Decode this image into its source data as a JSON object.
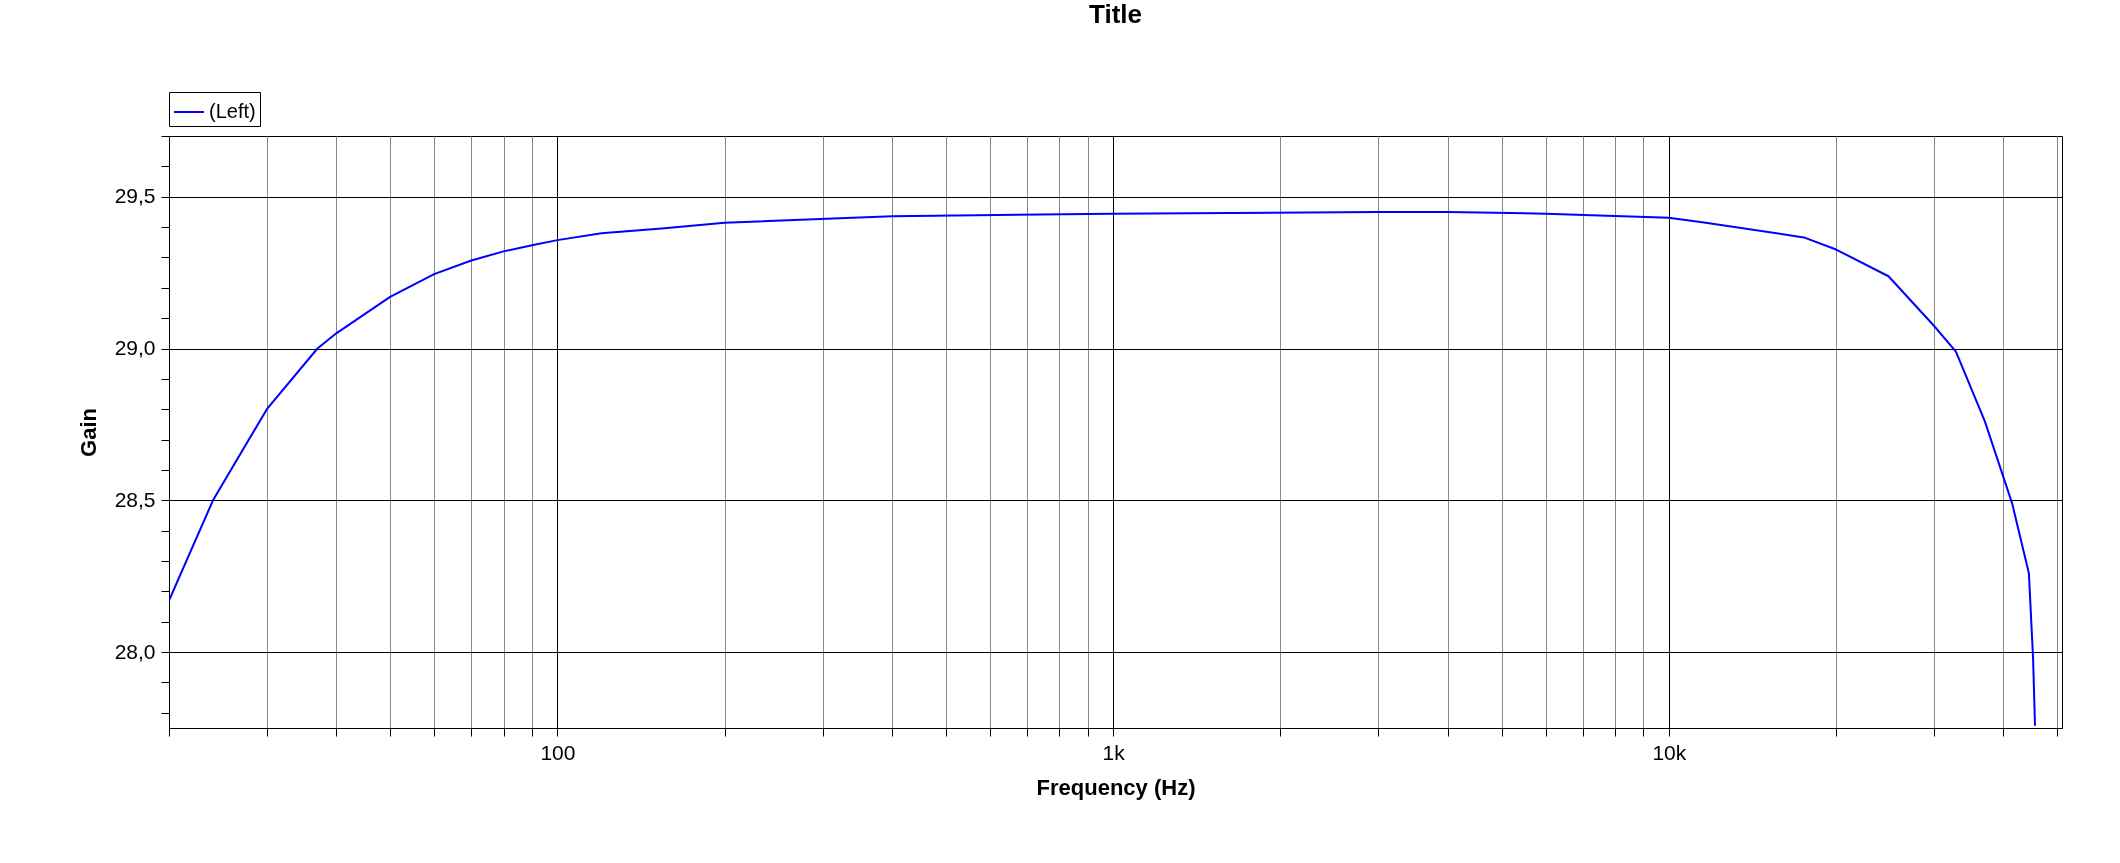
{
  "chart_data": {
    "type": "line",
    "title": "Title",
    "xlabel": "Frequency (Hz)",
    "ylabel": "Gain",
    "log": "x",
    "grid": true,
    "legend": "top left",
    "marker": "none",
    "line_style": "solid",
    "xlim": [
      20,
      51000
    ],
    "ylim": [
      27.75,
      29.7
    ],
    "xticks": [
      {
        "value": 20,
        "label": null
      },
      {
        "value": 30,
        "label": null
      },
      {
        "value": 40,
        "label": null
      },
      {
        "value": 50,
        "label": null
      },
      {
        "value": 60,
        "label": null
      },
      {
        "value": 70,
        "label": null
      },
      {
        "value": 80,
        "label": null
      },
      {
        "value": 90,
        "label": null
      },
      {
        "value": 100,
        "label": "100"
      },
      {
        "value": 200,
        "label": null
      },
      {
        "value": 300,
        "label": null
      },
      {
        "value": 400,
        "label": null
      },
      {
        "value": 500,
        "label": null
      },
      {
        "value": 600,
        "label": null
      },
      {
        "value": 700,
        "label": null
      },
      {
        "value": 800,
        "label": null
      },
      {
        "value": 900,
        "label": null
      },
      {
        "value": 1000,
        "label": "1k"
      },
      {
        "value": 2000,
        "label": null
      },
      {
        "value": 3000,
        "label": null
      },
      {
        "value": 4000,
        "label": null
      },
      {
        "value": 5000,
        "label": null
      },
      {
        "value": 6000,
        "label": null
      },
      {
        "value": 7000,
        "label": null
      },
      {
        "value": 8000,
        "label": null
      },
      {
        "value": 9000,
        "label": null
      },
      {
        "value": 10000,
        "label": "10k"
      },
      {
        "value": 20000,
        "label": null
      },
      {
        "value": 30000,
        "label": null
      },
      {
        "value": 40000,
        "label": null
      },
      {
        "value": 50000,
        "label": null
      }
    ],
    "yticks": [
      {
        "value": 27.8,
        "label": null
      },
      {
        "value": 27.9,
        "label": null
      },
      {
        "value": 28,
        "label": "28,0"
      },
      {
        "value": 28.1,
        "label": null
      },
      {
        "value": 28.2,
        "label": null
      },
      {
        "value": 28.3,
        "label": null
      },
      {
        "value": 28.4,
        "label": null
      },
      {
        "value": 28.5,
        "label": "28,5"
      },
      {
        "value": 28.6,
        "label": null
      },
      {
        "value": 28.7,
        "label": null
      },
      {
        "value": 28.8,
        "label": null
      },
      {
        "value": 28.9,
        "label": null
      },
      {
        "value": 29,
        "label": "29,0"
      },
      {
        "value": 29.1,
        "label": null
      },
      {
        "value": 29.2,
        "label": null
      },
      {
        "value": 29.3,
        "label": null
      },
      {
        "value": 29.4,
        "label": null
      },
      {
        "value": 29.5,
        "label": "29,5"
      },
      {
        "value": 29.6,
        "label": null
      },
      {
        "value": 29.7,
        "label": null
      }
    ],
    "series": [
      {
        "name": "(Left)",
        "color": "#0000ff",
        "x": [
          20,
          24,
          30,
          37,
          40,
          50,
          60,
          70,
          80,
          90,
          100,
          120,
          154,
          200,
          400,
          1000,
          3000,
          4000,
          6000,
          10000,
          11570,
          17500,
          20000,
          24850,
          30000,
          32860,
          37050,
          41480,
          44460,
          45240,
          45600
        ],
        "values": [
          28.17,
          28.5,
          28.8,
          29.0,
          29.05,
          29.17,
          29.245,
          29.29,
          29.32,
          29.34,
          29.357,
          29.38,
          29.395,
          29.414,
          29.436,
          29.444,
          29.45,
          29.45,
          29.444,
          29.431,
          29.415,
          29.366,
          29.326,
          29.238,
          29.075,
          28.99,
          28.76,
          28.49,
          28.26,
          27.98,
          27.76
        ]
      }
    ]
  }
}
